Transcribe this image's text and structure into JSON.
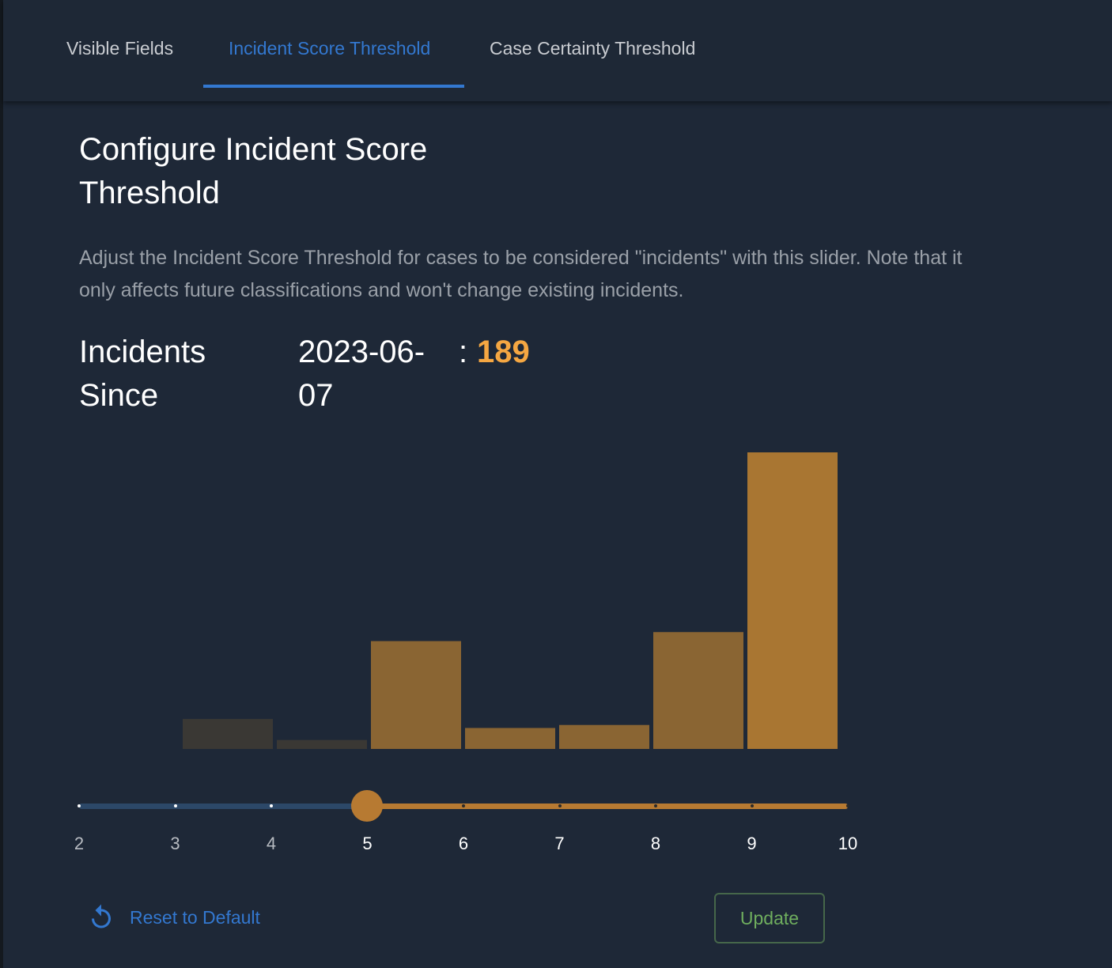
{
  "tabs": [
    {
      "label": "Visible Fields",
      "active": false
    },
    {
      "label": "Incident Score Threshold",
      "active": true
    },
    {
      "label": "Case Certainty Threshold",
      "active": false
    }
  ],
  "title": "Configure Incident Score Threshold",
  "description": "Adjust the Incident Score Threshold for cases to be considered \"incidents\" with this slider. Note that it only affects future classifications and won't change existing incidents.",
  "incidents": {
    "label": "Incidents Since",
    "date": "2023-06-07",
    "colon": ":",
    "count": "189"
  },
  "slider": {
    "min": 2,
    "max": 10,
    "value": 5,
    "ticks": [
      "2",
      "3",
      "4",
      "5",
      "6",
      "7",
      "8",
      "9",
      "10"
    ]
  },
  "colors": {
    "accent": "#3378d0",
    "active_bar": "#b77a32",
    "inactive_bar": "#3a3834",
    "count": "#f5a742",
    "update": "#6fae5e"
  },
  "chart_data": {
    "type": "bar",
    "values": [
      0,
      10,
      3,
      36,
      7,
      8,
      39,
      99
    ],
    "highlight_from_index": 3,
    "xlabel": "",
    "ylabel": "",
    "grid": false
  },
  "actions": {
    "reset_label": "Reset to Default",
    "reset_icon": "undo-icon",
    "update_label": "Update"
  }
}
